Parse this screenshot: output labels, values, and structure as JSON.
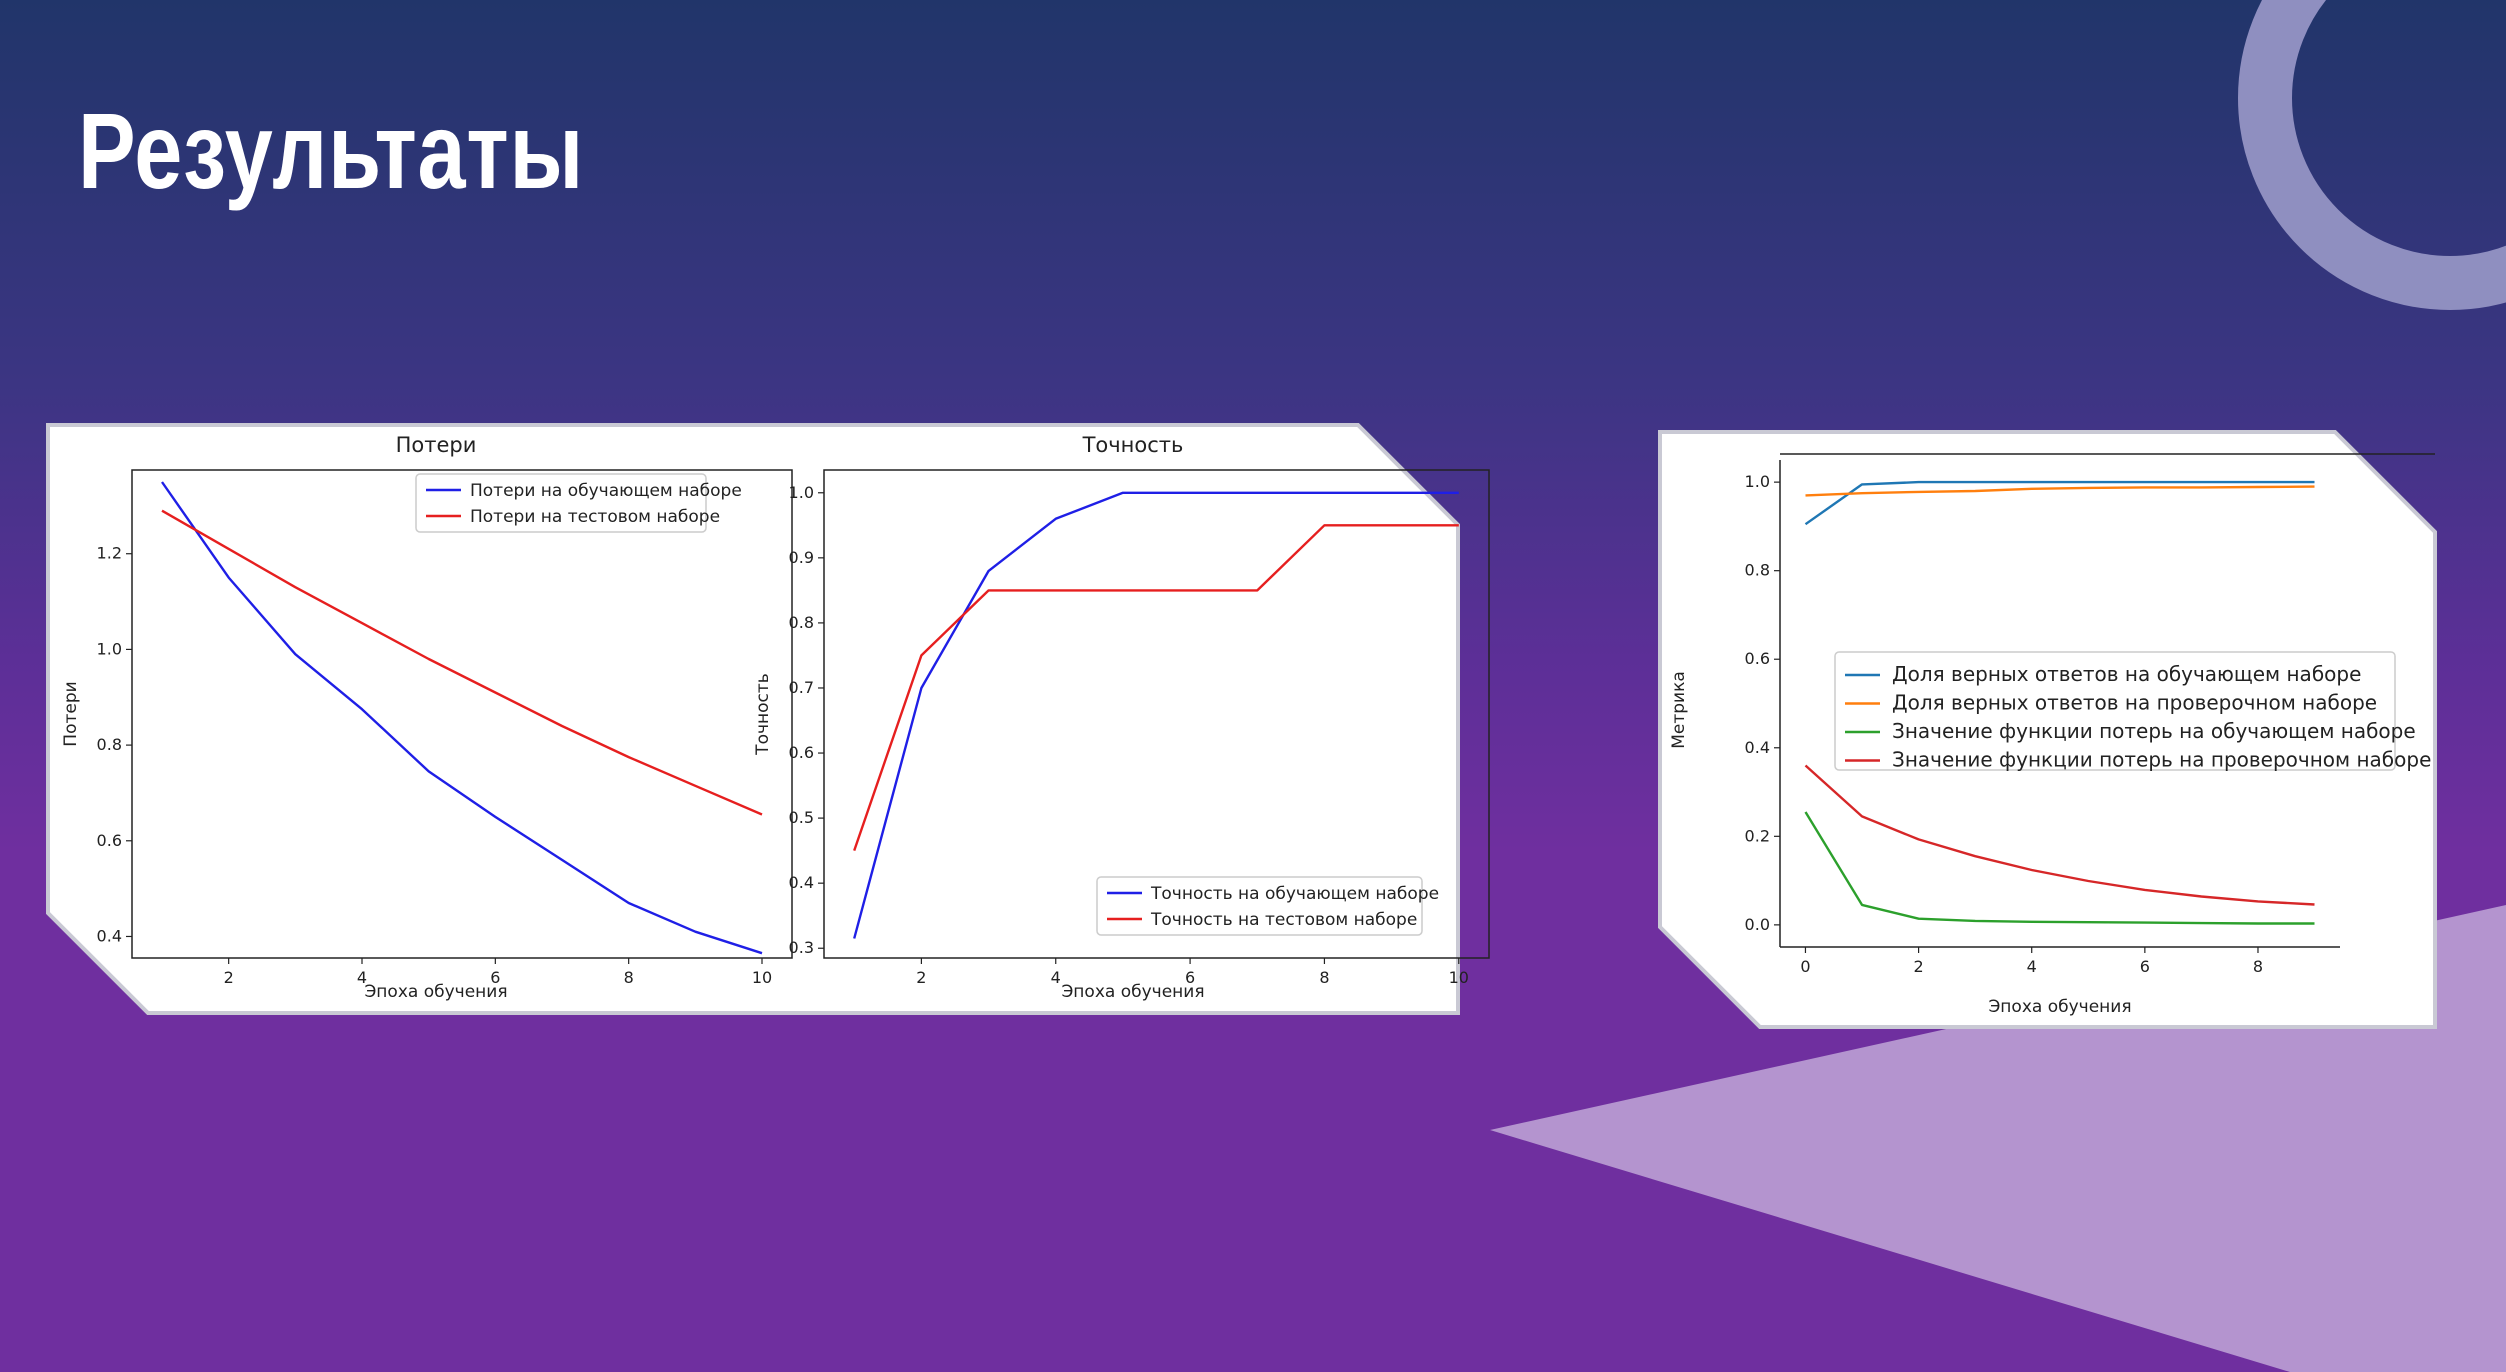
{
  "page": {
    "title": "Результаты"
  },
  "colors": {
    "background_top": "#21356a",
    "background_bottom": "#6f2f9f",
    "ring": "#8f8fc0",
    "triangle": "#b494cf",
    "card": "#ffffff"
  },
  "chart_data": [
    {
      "type": "line",
      "title": "Потери",
      "xlabel": "Эпоха обучения",
      "ylabel": "Потери",
      "xlim": [
        0.55,
        10.45
      ],
      "ylim": [
        0.355,
        1.375
      ],
      "xticks": [
        2,
        4,
        6,
        8,
        10
      ],
      "yticks": [
        0.4,
        0.6,
        0.8,
        1.0,
        1.2
      ],
      "legend_position": "upper right",
      "series": [
        {
          "name": "Потери на обучающем наборе",
          "color": "#1f1fe6",
          "x": [
            1,
            2,
            3,
            4,
            5,
            6,
            7,
            8,
            9,
            10
          ],
          "y": [
            1.35,
            1.15,
            0.99,
            0.875,
            0.745,
            0.65,
            0.56,
            0.47,
            0.41,
            0.365
          ]
        },
        {
          "name": "Потери на тестовом наборе",
          "color": "#e61f1f",
          "x": [
            1,
            2,
            3,
            4,
            5,
            6,
            7,
            8,
            9,
            10
          ],
          "y": [
            1.29,
            1.21,
            1.13,
            1.055,
            0.98,
            0.91,
            0.84,
            0.775,
            0.715,
            0.655
          ]
        }
      ]
    },
    {
      "type": "line",
      "title": "Точность",
      "xlabel": "Эпоха обучения",
      "ylabel": "Точность",
      "xlim": [
        0.55,
        10.45
      ],
      "ylim": [
        0.285,
        1.035
      ],
      "xticks": [
        2,
        4,
        6,
        8,
        10
      ],
      "yticks": [
        0.3,
        0.4,
        0.5,
        0.6,
        0.7,
        0.8,
        0.9,
        1.0
      ],
      "legend_position": "lower right",
      "series": [
        {
          "name": "Точность на обучающем наборе",
          "color": "#1f1fe6",
          "x": [
            1,
            2,
            3,
            4,
            5,
            6,
            7,
            8,
            9,
            10
          ],
          "y": [
            0.315,
            0.7,
            0.88,
            0.96,
            1.0,
            1.0,
            1.0,
            1.0,
            1.0,
            1.0
          ]
        },
        {
          "name": "Точность на тестовом наборе",
          "color": "#e61f1f",
          "x": [
            1,
            2,
            3,
            4,
            5,
            6,
            7,
            8,
            9,
            10
          ],
          "y": [
            0.45,
            0.75,
            0.85,
            0.85,
            0.85,
            0.85,
            0.85,
            0.95,
            0.95,
            0.95
          ]
        }
      ]
    },
    {
      "type": "line",
      "title": "",
      "xlabel": "Эпоха обучения",
      "ylabel": "Метрика",
      "xlim": [
        -0.45,
        9.45
      ],
      "ylim": [
        -0.05,
        1.05
      ],
      "xticks": [
        0,
        2,
        4,
        6,
        8
      ],
      "yticks": [
        0.0,
        0.2,
        0.4,
        0.6,
        0.8,
        1.0
      ],
      "legend_position": "center right",
      "series": [
        {
          "name": "Доля верных ответов на обучающем наборе",
          "color": "#1f77b4",
          "x": [
            0,
            1,
            2,
            3,
            4,
            5,
            6,
            7,
            8,
            9
          ],
          "y": [
            0.905,
            0.995,
            1.0,
            1.0,
            1.0,
            1.0,
            1.0,
            1.0,
            1.0,
            1.0
          ]
        },
        {
          "name": "Доля верных ответов на проверочном наборе",
          "color": "#ff7f0e",
          "x": [
            0,
            1,
            2,
            3,
            4,
            5,
            6,
            7,
            8,
            9
          ],
          "y": [
            0.97,
            0.975,
            0.978,
            0.98,
            0.985,
            0.987,
            0.988,
            0.988,
            0.989,
            0.99
          ]
        },
        {
          "name": "Значение функции потерь на обучающем наборе",
          "color": "#2ca02c",
          "x": [
            0,
            1,
            2,
            3,
            4,
            5,
            6,
            7,
            8,
            9
          ],
          "y": [
            0.255,
            0.045,
            0.014,
            0.009,
            0.007,
            0.006,
            0.005,
            0.004,
            0.003,
            0.003
          ]
        },
        {
          "name": "Значение функции потерь на проверочном наборе",
          "color": "#d62728",
          "x": [
            0,
            1,
            2,
            3,
            4,
            5,
            6,
            7,
            8,
            9
          ],
          "y": [
            0.36,
            0.245,
            0.193,
            0.155,
            0.124,
            0.099,
            0.079,
            0.064,
            0.053,
            0.046
          ]
        }
      ]
    }
  ]
}
